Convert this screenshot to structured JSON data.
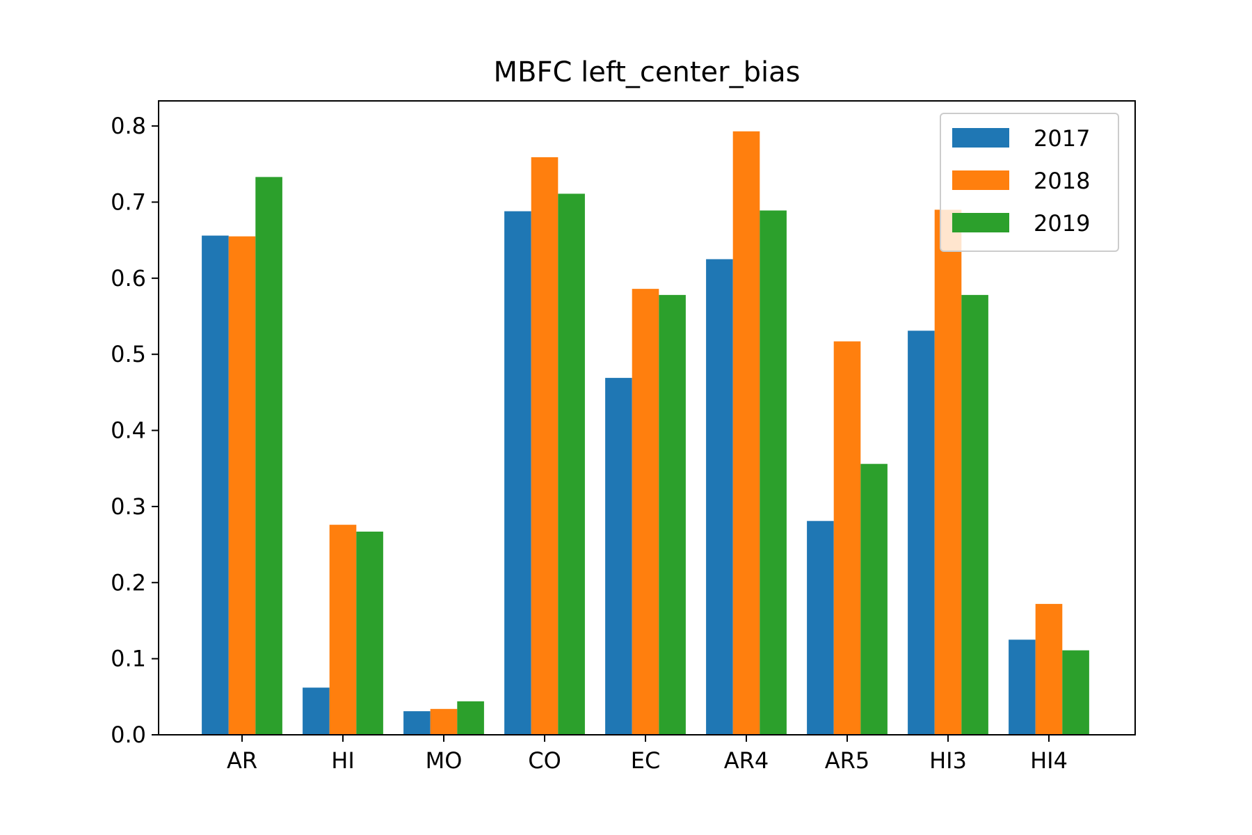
{
  "chart_data": {
    "type": "bar",
    "title": "MBFC left_center_bias",
    "xlabel": "",
    "ylabel": "",
    "categories": [
      "AR",
      "HI",
      "MO",
      "CO",
      "EC",
      "AR4",
      "AR5",
      "HI3",
      "HI4"
    ],
    "series": [
      {
        "name": "2017",
        "color": "#1f77b4",
        "values": [
          0.656,
          0.062,
          0.031,
          0.688,
          0.469,
          0.625,
          0.281,
          0.531,
          0.125
        ]
      },
      {
        "name": "2018",
        "color": "#ff7f0e",
        "values": [
          0.655,
          0.276,
          0.034,
          0.759,
          0.586,
          0.793,
          0.517,
          0.69,
          0.172
        ]
      },
      {
        "name": "2019",
        "color": "#2ca02c",
        "values": [
          0.733,
          0.267,
          0.044,
          0.711,
          0.578,
          0.689,
          0.356,
          0.578,
          0.111
        ]
      }
    ],
    "ylim": [
      0,
      0.833
    ],
    "yticks": [
      "0.0",
      "0.1",
      "0.2",
      "0.3",
      "0.4",
      "0.5",
      "0.6",
      "0.7",
      "0.8"
    ],
    "ytick_values": [
      0,
      0.1,
      0.2,
      0.3,
      0.4,
      0.5,
      0.6,
      0.7,
      0.8
    ],
    "grid": false,
    "legend_position": "top-right"
  }
}
